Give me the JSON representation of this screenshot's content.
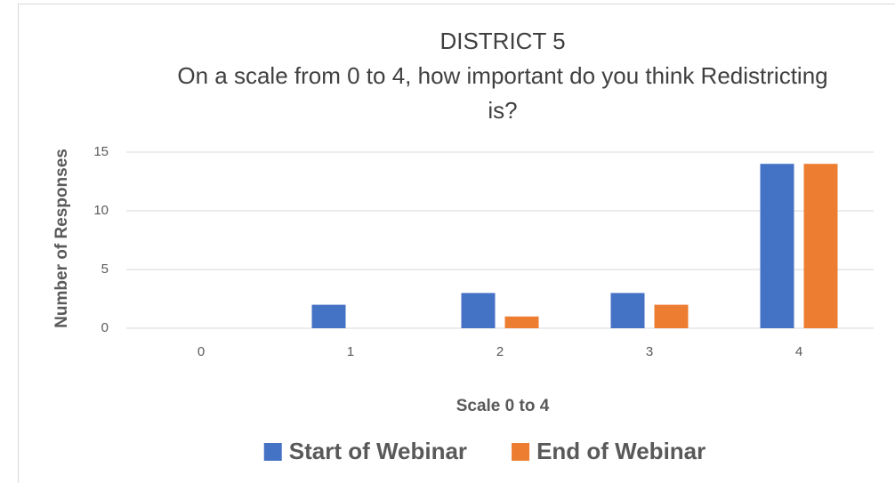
{
  "chart_data": {
    "type": "bar",
    "title": "DISTRICT 5",
    "subtitle": "On a scale from 0 to 4, how important do you think Redistricting is?",
    "x_label": "Scale 0 to 4",
    "y_label": "Number of Responses",
    "categories": [
      "0",
      "1",
      "2",
      "3",
      "4"
    ],
    "series": [
      {
        "name": "Start of Webinar",
        "color": "#4472c4",
        "values": [
          0,
          2,
          3,
          3,
          14
        ]
      },
      {
        "name": "End of Webinar",
        "color": "#ed7d31",
        "values": [
          0,
          0,
          1,
          2,
          14
        ]
      }
    ],
    "ylim": [
      0,
      15
    ],
    "yticks": [
      0,
      5,
      10,
      15
    ],
    "grid": true,
    "legend": "bottom"
  }
}
